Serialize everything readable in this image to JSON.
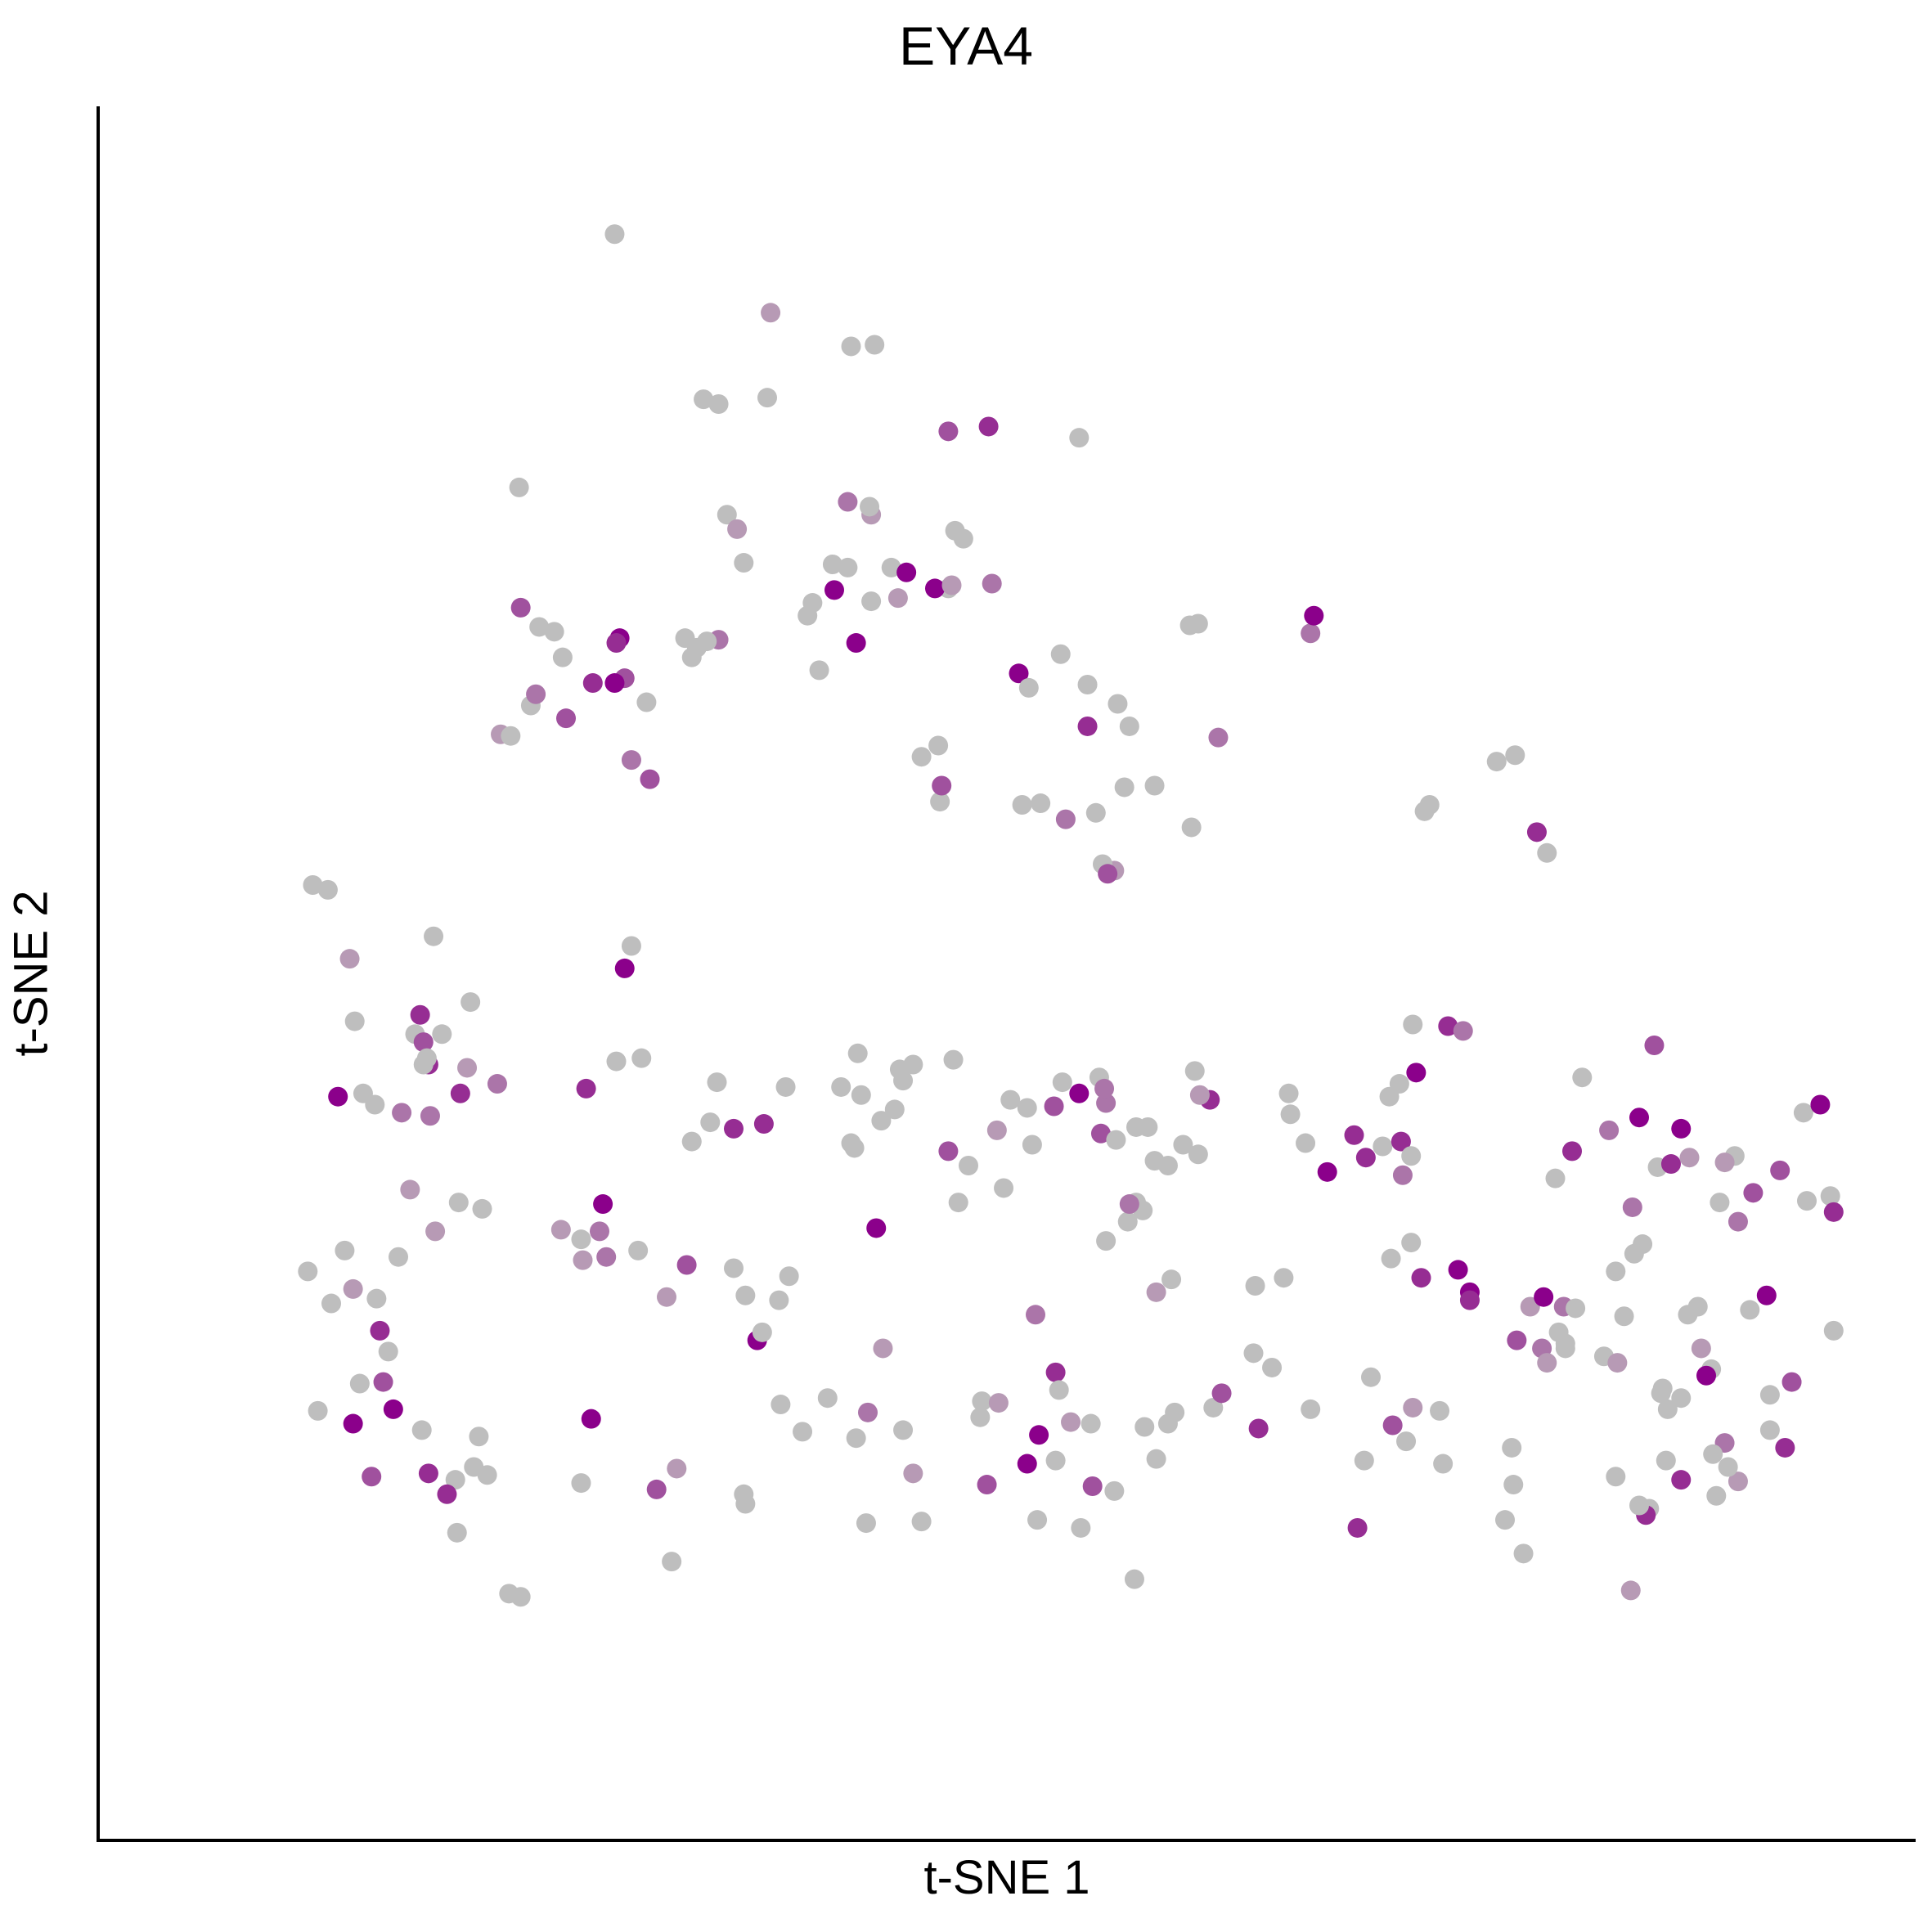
{
  "chart_data": {
    "type": "scatter",
    "title": "EYA4",
    "xlabel": "t-SNE 1",
    "ylabel": "t-SNE 2",
    "xlim": [
      0,
      1000
    ],
    "ylim": [
      0,
      1000
    ],
    "axis_ticks": "none",
    "grid": false,
    "legend": "none",
    "color_scale": {
      "low": "#bebebe",
      "high": "#8b008b"
    },
    "points": [
      [
        269,
        956
      ],
      [
        362,
        907
      ],
      [
        410,
        886
      ],
      [
        424,
        887
      ],
      [
        360,
        854
      ],
      [
        322,
        853
      ],
      [
        331,
        850
      ],
      [
        492,
        836
      ],
      [
        422,
        781
      ],
      [
        472,
        771
      ],
      [
        477,
        766
      ],
      [
        468,
        833
      ],
      [
        408,
        789
      ],
      [
        408,
        748
      ],
      [
        422,
        727
      ],
      [
        546,
        829
      ],
      [
        494,
        738
      ],
      [
        468,
        735
      ],
      [
        438,
        729
      ],
      [
        318,
        698
      ],
      [
        315,
        692
      ],
      [
        346,
        751
      ],
      [
        460,
        735
      ],
      [
        400,
        734
      ],
      [
        387,
        726
      ],
      [
        384,
        718
      ],
      [
        413,
        701
      ],
      [
        391,
        684
      ],
      [
        336,
        781
      ],
      [
        342,
        772
      ],
      [
        331,
        703
      ],
      [
        324,
        702
      ],
      [
        434,
        748
      ],
      [
        443,
        745
      ],
      [
        421,
        786
      ],
      [
        399,
        750
      ],
      [
        470,
        737
      ],
      [
        462,
        637
      ],
      [
        463,
        602
      ],
      [
        464,
        612
      ],
      [
        452,
        630
      ],
      [
        535,
        694
      ],
      [
        551,
        675
      ],
      [
        510,
        682
      ],
      [
        516,
        673
      ],
      [
        551,
        649
      ],
      [
        576,
        649
      ],
      [
        573,
        611
      ],
      [
        567,
        559
      ],
      [
        560,
        563
      ],
      [
        563,
        557
      ],
      [
        538,
        591
      ],
      [
        556,
        595
      ],
      [
        512,
        600
      ],
      [
        523,
        601
      ],
      [
        591,
        612
      ],
      [
        613,
        586
      ],
      [
        569,
        663
      ],
      [
        629,
        642
      ],
      [
        684,
        707
      ],
      [
        686,
        718
      ],
      [
        612,
        712
      ],
      [
        617,
        713
      ],
      [
        755,
        600
      ],
      [
        752,
        596
      ],
      [
        819,
        583
      ],
      [
        825,
        570
      ],
      [
        795,
        627
      ],
      [
        806,
        631
      ],
      [
        212,
        798
      ],
      [
        213,
        723
      ],
      [
        224,
        711
      ],
      [
        219,
        662
      ],
      [
        275,
        679
      ],
      [
        256,
        676
      ],
      [
        269,
        676
      ],
      [
        272,
        704
      ],
      [
        270,
        701
      ],
      [
        240,
        654
      ],
      [
        222,
        669
      ],
      [
        201,
        644
      ],
      [
        207,
        643
      ],
      [
        233,
        708
      ],
      [
        238,
        692
      ],
      [
        311,
        704
      ],
      [
        288,
        664
      ],
      [
        279,
        628
      ],
      [
        290,
        616
      ],
      [
        279,
        512
      ],
      [
        275,
        498
      ],
      [
        89,
        550
      ],
      [
        98,
        547
      ],
      [
        111,
        504
      ],
      [
        114,
        465
      ],
      [
        119,
        420
      ],
      [
        104,
        418
      ],
      [
        150,
        457
      ],
      [
        158,
        438
      ],
      [
        181,
        436
      ],
      [
        183,
        477
      ],
      [
        166,
        457
      ],
      [
        155,
        452
      ],
      [
        153,
        469
      ],
      [
        161,
        518
      ],
      [
        157,
        442
      ],
      [
        126,
        413
      ],
      [
        142,
        408
      ],
      [
        159,
        406
      ],
      [
        199,
        426
      ],
      [
        177,
        420
      ],
      [
        155,
        438
      ],
      [
        252,
        423
      ],
      [
        270,
        440
      ],
      [
        315,
        390
      ],
      [
        285,
        442
      ],
      [
        326,
        402
      ],
      [
        330,
        427
      ],
      [
        340,
        398
      ],
      [
        358,
        401
      ],
      [
        371,
        424
      ],
      [
        412,
        386
      ],
      [
        410,
        389
      ],
      [
        416,
        419
      ],
      [
        404,
        424
      ],
      [
        428,
        403
      ],
      [
        414,
        445
      ],
      [
        439,
        435
      ],
      [
        436,
        410
      ],
      [
        468,
        384
      ],
      [
        480,
        375
      ],
      [
        518,
        388
      ],
      [
        501,
        361
      ],
      [
        497,
        397
      ],
      [
        474,
        352
      ],
      [
        441,
        428
      ],
      [
        447,
        438
      ],
      [
        471,
        441
      ],
      [
        505,
        416
      ],
      [
        515,
        411
      ],
      [
        531,
        412
      ],
      [
        536,
        427
      ],
      [
        559,
        395
      ],
      [
        558,
        430
      ],
      [
        546,
        420
      ],
      [
        562,
        414
      ],
      [
        561,
        423
      ],
      [
        568,
        391
      ],
      [
        580,
        399
      ],
      [
        617,
        382
      ],
      [
        624,
        416
      ],
      [
        615,
        434
      ],
      [
        608,
        388
      ],
      [
        587,
        399
      ],
      [
        591,
        378
      ],
      [
        599,
        375
      ],
      [
        618,
        419
      ],
      [
        671,
        420
      ],
      [
        672,
        407
      ],
      [
        681,
        389
      ],
      [
        710,
        394
      ],
      [
        731,
        418
      ],
      [
        737,
        426
      ],
      [
        727,
        387
      ],
      [
        738,
        390
      ],
      [
        739,
        369
      ],
      [
        744,
        381
      ],
      [
        766,
        462
      ],
      [
        775,
        459
      ],
      [
        745,
        463
      ],
      [
        747,
        433
      ],
      [
        840,
        384
      ],
      [
        830,
        367
      ],
      [
        846,
        430
      ],
      [
        862,
        397
      ],
      [
        889,
        450
      ],
      [
        880,
        405
      ],
      [
        891,
        374
      ],
      [
        905,
        398
      ],
      [
        910,
        380
      ],
      [
        899,
        376
      ],
      [
        937,
        381
      ],
      [
        978,
        408
      ],
      [
        988,
        413
      ],
      [
        931,
        377
      ],
      [
        939,
        340
      ],
      [
        928,
        352
      ],
      [
        948,
        358
      ],
      [
        964,
        372
      ],
      [
        980,
        353
      ],
      [
        994,
        356
      ],
      [
        996,
        346
      ],
      [
        876,
        349
      ],
      [
        882,
        326
      ],
      [
        866,
        309
      ],
      [
        877,
        320
      ],
      [
        772,
        310
      ],
      [
        822,
        261
      ],
      [
        836,
        264
      ],
      [
        835,
        287
      ],
      [
        842,
        286
      ],
      [
        871,
        281
      ],
      [
        909,
        282
      ],
      [
        915,
        287
      ],
      [
        946,
        285
      ],
      [
        956,
        294
      ],
      [
        996,
        272
      ],
      [
        893,
        233
      ],
      [
        897,
        223
      ],
      [
        923,
        248
      ],
      [
        931,
        202
      ],
      [
        958,
        232
      ],
      [
        971,
        240
      ],
      [
        958,
        210
      ],
      [
        967,
        199
      ],
      [
        939,
        178
      ],
      [
        933,
        187
      ],
      [
        905,
        179
      ],
      [
        896,
        191
      ],
      [
        926,
        169
      ],
      [
        886,
        161
      ],
      [
        884,
        157
      ],
      [
        875,
        110
      ],
      [
        880,
        163
      ],
      [
        924,
        195
      ],
      [
        866,
        181
      ],
      [
        800,
        154
      ],
      [
        811,
        133
      ],
      [
        804,
        199
      ],
      [
        805,
        176
      ],
      [
        763,
        189
      ],
      [
        741,
        203
      ],
      [
        733,
        213
      ],
      [
        716,
        191
      ],
      [
        745,
        224
      ],
      [
        712,
        149
      ],
      [
        761,
        222
      ],
      [
        720,
        243
      ],
      [
        684,
        223
      ],
      [
        668,
        305
      ],
      [
        651,
        300
      ],
      [
        626,
        224
      ],
      [
        631,
        233
      ],
      [
        653,
        211
      ],
      [
        592,
        192
      ],
      [
        585,
        212
      ],
      [
        579,
        117
      ],
      [
        567,
        172
      ],
      [
        553,
        214
      ],
      [
        554,
        175
      ],
      [
        547,
        149
      ],
      [
        521,
        154
      ],
      [
        541,
        215
      ],
      [
        532,
        246
      ],
      [
        522,
        207
      ],
      [
        532,
        191
      ],
      [
        515,
        189
      ],
      [
        491,
        176
      ],
      [
        487,
        218
      ],
      [
        441,
        210
      ],
      [
        452,
        153
      ],
      [
        419,
        152
      ],
      [
        420,
        221
      ],
      [
        429,
        261
      ],
      [
        354,
        266
      ],
      [
        347,
        294
      ],
      [
        373,
        306
      ],
      [
        357,
        271
      ],
      [
        340,
        311
      ],
      [
        425,
        336
      ],
      [
        300,
        293
      ],
      [
        312,
        313
      ],
      [
        264,
        318
      ],
      [
        283,
        322
      ],
      [
        250,
        316
      ],
      [
        249,
        329
      ],
      [
        260,
        334
      ],
      [
        262,
        351
      ],
      [
        237,
        335
      ],
      [
        190,
        348
      ],
      [
        176,
        352
      ],
      [
        162,
        334
      ],
      [
        147,
        360
      ],
      [
        140,
        318
      ],
      [
        127,
        292
      ],
      [
        129,
        272
      ],
      [
        131,
        240
      ],
      [
        134,
        259
      ],
      [
        117,
        239
      ],
      [
        113,
        298
      ],
      [
        108,
        322
      ],
      [
        86,
        309
      ],
      [
        92,
        222
      ],
      [
        100,
        289
      ],
      [
        113,
        214
      ],
      [
        124,
        181
      ],
      [
        137,
        223
      ],
      [
        154,
        210
      ],
      [
        158,
        183
      ],
      [
        174,
        179
      ],
      [
        175,
        146
      ],
      [
        169,
        170
      ],
      [
        185,
        187
      ],
      [
        188,
        206
      ],
      [
        193,
        182
      ],
      [
        206,
        108
      ],
      [
        213,
        106
      ],
      [
        249,
        177
      ],
      [
        255,
        217
      ],
      [
        294,
        173
      ],
      [
        306,
        186
      ],
      [
        303,
        128
      ],
      [
        347,
        164
      ],
      [
        346,
        170
      ],
      [
        368,
        226
      ],
      [
        367,
        291
      ],
      [
        381,
        209
      ],
      [
        396,
        230
      ],
      [
        413,
        205
      ],
      [
        447,
        183
      ],
      [
        488,
        228
      ],
      [
        498,
        227
      ],
      [
        520,
        282
      ],
      [
        534,
        235
      ],
      [
        603,
        221
      ],
      [
        599,
        214
      ],
      [
        661,
        249
      ],
      [
        650,
        258
      ],
      [
        601,
        304
      ],
      [
        592,
        296
      ],
      [
        584,
        347
      ],
      [
        580,
        352
      ],
      [
        562,
        328
      ],
      [
        575,
        340
      ],
      [
        576,
        351
      ],
      [
        694,
        371
      ],
      [
        717,
        380
      ],
      [
        732,
        317
      ],
      [
        744,
        327
      ],
      [
        750,
        305
      ],
      [
        779,
        296
      ],
      [
        779,
        291
      ],
      [
        807,
        266
      ],
      [
        815,
        287
      ],
      [
        823,
        293
      ],
      [
        832,
        271
      ],
      [
        836,
        261
      ],
      [
        825,
        252
      ],
      [
        859,
        256
      ],
      [
        867,
        252
      ],
      [
        894,
        236
      ],
      [
        905,
        230
      ],
      [
        920,
        244
      ],
      [
        917,
        261
      ]
    ],
    "colors_note": "per-point colour intensity reflects expression level"
  }
}
